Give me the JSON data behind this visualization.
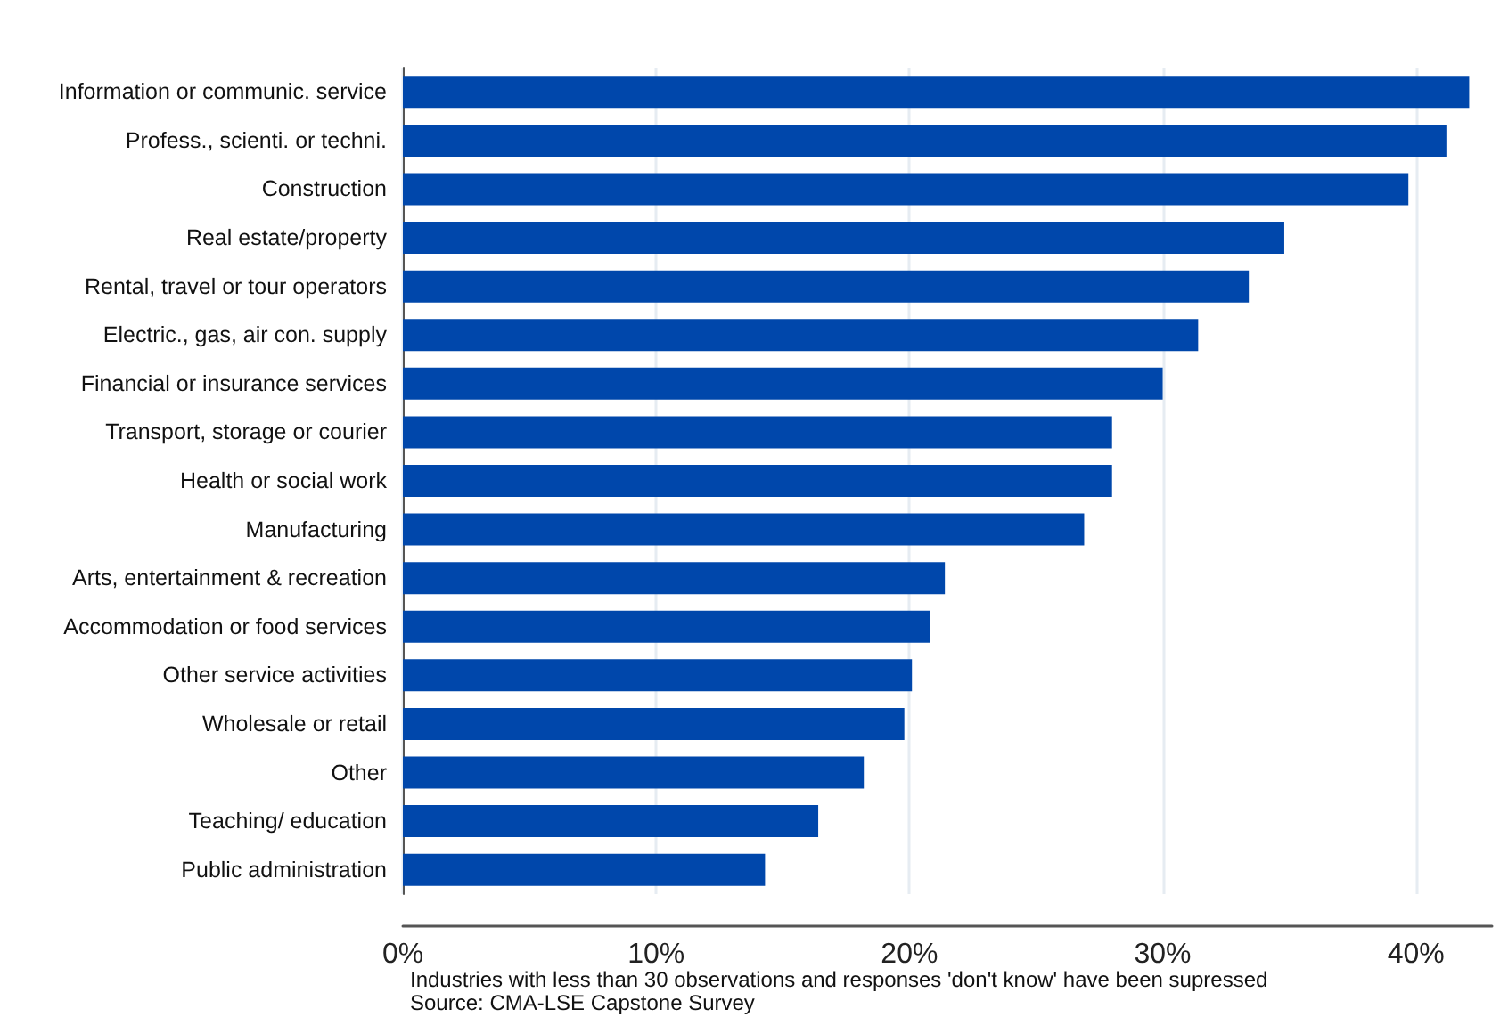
{
  "chart_data": {
    "type": "bar",
    "orientation": "horizontal",
    "categories": [
      "Information or communic. service",
      "Profess., scienti. or techni.",
      "Construction",
      "Real estate/property",
      "Rental, travel or tour operators",
      "Electric., gas, air con. supply",
      "Financial or insurance services",
      "Transport, storage or courier",
      "Health or social work",
      "Manufacturing",
      "Arts, entertainment & recreation",
      "Accommodation or food services",
      "Other service activities",
      "Wholesale or retail",
      "Other",
      "Teaching/ education",
      "Public administration"
    ],
    "values": [
      42.1,
      41.2,
      39.7,
      34.8,
      33.4,
      31.4,
      30.0,
      28.0,
      28.0,
      26.9,
      21.4,
      20.8,
      20.1,
      19.8,
      18.2,
      16.4,
      14.3
    ],
    "color": "#0047ab",
    "xlim": [
      0,
      43
    ],
    "xticks": [
      {
        "value": 0,
        "label": "0%"
      },
      {
        "value": 10,
        "label": "10%"
      },
      {
        "value": 20,
        "label": "20%"
      },
      {
        "value": 30,
        "label": "30%"
      },
      {
        "value": 40,
        "label": "40%"
      }
    ],
    "grid": "x",
    "annotations": [
      "Industries with less than 30 observations and responses 'don't know' have been supressed",
      "Source: CMA-LSE Capstone Survey"
    ]
  }
}
